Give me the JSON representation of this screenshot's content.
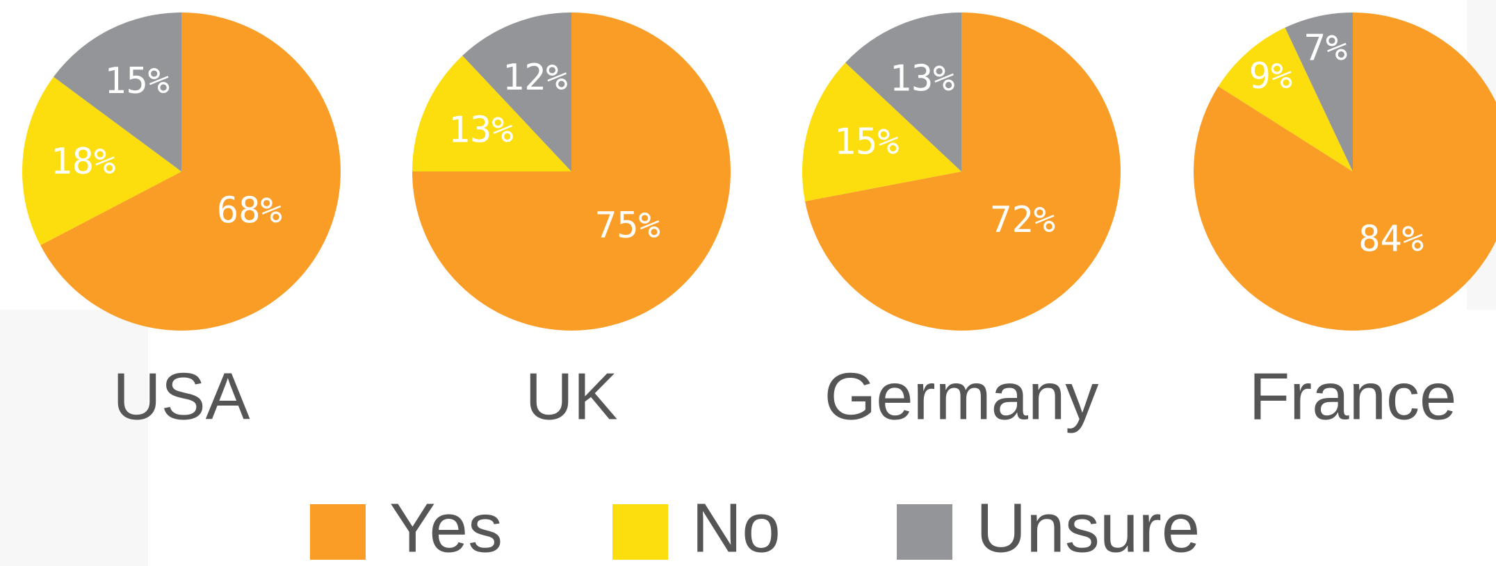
{
  "chart_data": [
    {
      "type": "pie",
      "title": "USA",
      "categories": [
        "Yes",
        "No",
        "Unsure"
      ],
      "values": [
        68,
        18,
        15
      ],
      "value_labels": [
        "68%",
        "18%",
        "15%"
      ],
      "colors": [
        "#f99d27",
        "#fcdd0d",
        "#939598"
      ]
    },
    {
      "type": "pie",
      "title": "UK",
      "categories": [
        "Yes",
        "No",
        "Unsure"
      ],
      "values": [
        75,
        13,
        12
      ],
      "value_labels": [
        "75%",
        "13%",
        "12%"
      ],
      "colors": [
        "#f99d27",
        "#fcdd0d",
        "#939598"
      ]
    },
    {
      "type": "pie",
      "title": "Germany",
      "categories": [
        "Yes",
        "No",
        "Unsure"
      ],
      "values": [
        72,
        15,
        13
      ],
      "value_labels": [
        "72%",
        "15%",
        "13%"
      ],
      "colors": [
        "#f99d27",
        "#fcdd0d",
        "#939598"
      ]
    },
    {
      "type": "pie",
      "title": "France",
      "categories": [
        "Yes",
        "No",
        "Unsure"
      ],
      "values": [
        84,
        9,
        7
      ],
      "value_labels": [
        "84%",
        "9%",
        "7%"
      ],
      "colors": [
        "#f99d27",
        "#fcdd0d",
        "#939598"
      ]
    }
  ]
}
